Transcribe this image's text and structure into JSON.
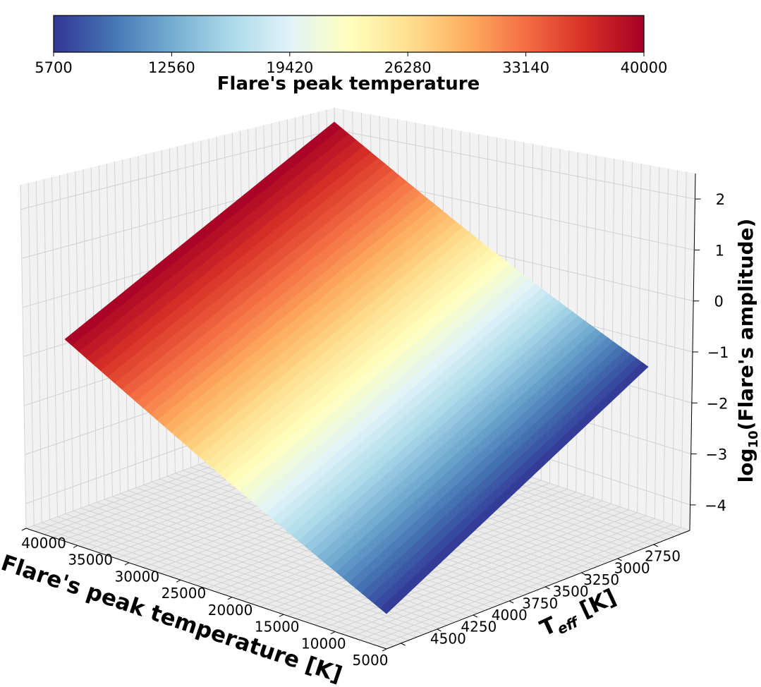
{
  "chart_data": {
    "type": "surface3d",
    "title": "",
    "colorbar": {
      "label": "Flare's peak temperature",
      "ticks": [
        "5700",
        "12560",
        "19420",
        "26280",
        "33140",
        "40000"
      ],
      "range": [
        5700,
        40000
      ],
      "colormap": "RdYlBu_r",
      "location": "top"
    },
    "x_axis": {
      "label": "Flare's peak temperature [K]",
      "ticks": [
        "40000",
        "35000",
        "30000",
        "25000",
        "20000",
        "15000",
        "10000",
        "5000"
      ],
      "range": [
        5000,
        40000
      ]
    },
    "y_axis": {
      "label_main": "T",
      "label_sub": "eff",
      "label_rest": " [K]",
      "ticks": [
        "2750",
        "3000",
        "3250",
        "3500",
        "3750",
        "4000",
        "4250",
        "4500"
      ],
      "range": [
        2500,
        4600
      ]
    },
    "z_axis": {
      "label_main": "log",
      "label_sub": "10",
      "label_rest": "(Flare's amplitude)",
      "ticks": [
        "2",
        "1",
        "0",
        "−1",
        "−2",
        "−3",
        "−4"
      ],
      "range": [
        -4.5,
        2.5
      ]
    },
    "surface_corners": {
      "T40000_Teff2500": 2.3,
      "T40000_Teff4600": -0.7,
      "T5700_Teff2500": -1.25,
      "T5700_Teff4600": -4.4
    },
    "grid": true,
    "colors": {
      "colormap_stops": [
        "#313695",
        "#4575b4",
        "#74add1",
        "#abd9e9",
        "#e0f3f8",
        "#ffffbf",
        "#fee090",
        "#fdae61",
        "#f46d43",
        "#d73027",
        "#a50026"
      ],
      "pane": "#f2f2f2",
      "gridline": "#d0d0d0"
    }
  }
}
